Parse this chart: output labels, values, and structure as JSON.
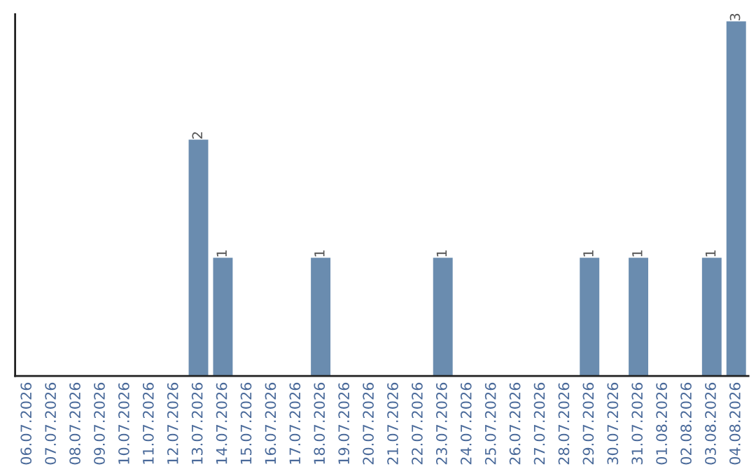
{
  "chart_data": {
    "type": "bar",
    "categories": [
      "06.07.2026",
      "07.07.2026",
      "08.07.2026",
      "09.07.2026",
      "10.07.2026",
      "11.07.2026",
      "12.07.2026",
      "13.07.2026",
      "14.07.2026",
      "15.07.2026",
      "16.07.2026",
      "17.07.2026",
      "18.07.2026",
      "19.07.2026",
      "20.07.2026",
      "21.07.2026",
      "22.07.2026",
      "23.07.2026",
      "24.07.2026",
      "25.07.2026",
      "26.07.2026",
      "27.07.2026",
      "28.07.2026",
      "29.07.2026",
      "30.07.2026",
      "31.07.2026",
      "01.08.2026",
      "02.08.2026",
      "03.08.2026",
      "04.08.2026"
    ],
    "values": [
      0,
      0,
      0,
      0,
      0,
      0,
      0,
      2,
      1,
      0,
      0,
      0,
      1,
      0,
      0,
      0,
      0,
      1,
      0,
      0,
      0,
      0,
      0,
      1,
      0,
      1,
      0,
      0,
      1,
      3
    ],
    "value_labels": [
      null,
      null,
      null,
      null,
      null,
      null,
      null,
      "2",
      "1",
      null,
      null,
      null,
      "1",
      null,
      null,
      null,
      null,
      "1",
      null,
      null,
      null,
      null,
      null,
      "1",
      null,
      "1",
      null,
      null,
      "1",
      "3"
    ],
    "color": "#6a8caf",
    "tick_labels": "x",
    "grid": false,
    "legend": false
  }
}
